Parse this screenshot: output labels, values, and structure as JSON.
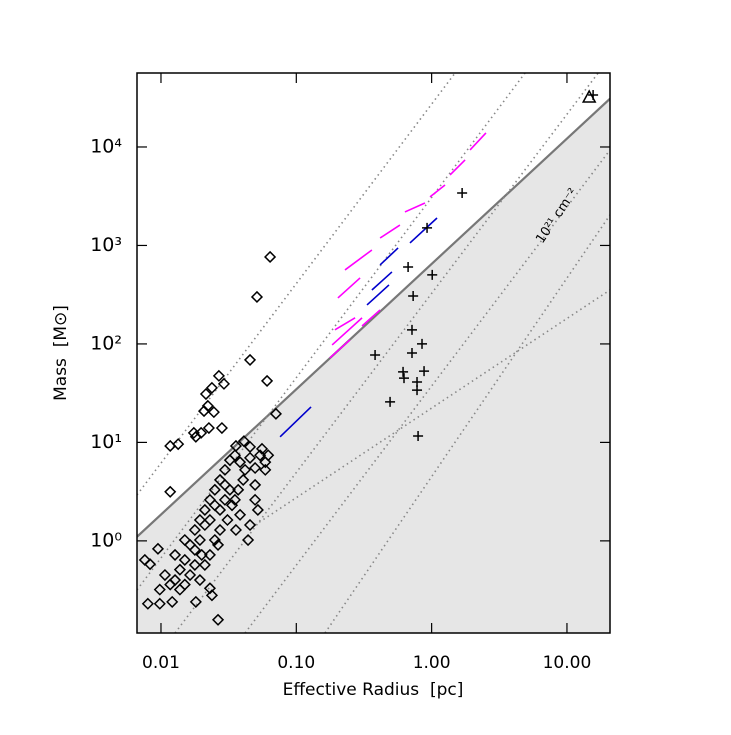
{
  "chart_data": {
    "type": "scatter",
    "xlabel": "Effective Radius  [pc]",
    "ylabel": "Mass  [M⊙]",
    "xscale": "log",
    "yscale": "log",
    "xlim": [
      0.00665,
      20.8
    ],
    "ylim": [
      0.116,
      56400
    ],
    "xticks": [
      {
        "value": 0.01,
        "label": "0.01"
      },
      {
        "value": 0.1,
        "label": "0.10"
      },
      {
        "value": 1,
        "label": "1.00"
      },
      {
        "value": 10,
        "label": "10.00"
      }
    ],
    "yticks": [
      {
        "value": 1,
        "label": "10⁰"
      },
      {
        "value": 10,
        "label": "10¹"
      },
      {
        "value": 100,
        "label": "10²"
      },
      {
        "value": 1000,
        "label": "10³"
      },
      {
        "value": 10000,
        "label": "10⁴"
      }
    ],
    "annotation": "10²¹ cm⁻²",
    "reference_lines": [
      {
        "style": "solid",
        "color": "#777777",
        "fill_below": "#e6e6e6",
        "x": [
          0.00665,
          20.8
        ],
        "values": [
          1.1,
          30900
        ]
      },
      {
        "style": "dotted",
        "color": "#888888",
        "x": [
          0.00665,
          1.49
        ],
        "values": [
          2.93,
          56400
        ]
      },
      {
        "style": "dotted",
        "color": "#888888",
        "x": [
          0.00665,
          4.9
        ],
        "values": [
          0.318,
          56400
        ]
      },
      {
        "style": "dotted",
        "color": "#888888",
        "x": [
          0.0127,
          17.0
        ],
        "values": [
          0.116,
          56400
        ]
      },
      {
        "style": "dotted",
        "color": "#888888",
        "x": [
          0.0418,
          20.8
        ],
        "values": [
          0.116,
          9330
        ]
      },
      {
        "style": "dotted",
        "color": "#888888",
        "x": [
          0.163,
          20.8
        ],
        "values": [
          0.116,
          2040
        ]
      },
      {
        "style": "dotted",
        "color": "#888888",
        "x": [
          0.0496,
          20.8
        ],
        "values": [
          1.45,
          353
        ]
      }
    ],
    "segments": [
      {
        "color": "#0000cc",
        "x": [
          0.0759,
          0.1285
        ],
        "values": [
          11.4,
          22.9
        ]
      },
      {
        "color": "#0000cc",
        "x": [
          0.333,
          0.484
        ],
        "values": [
          249,
          397
        ]
      },
      {
        "color": "#0000cc",
        "x": [
          0.362,
          0.509
        ],
        "values": [
          353,
          538
        ]
      },
      {
        "color": "#0000cc",
        "x": [
          0.416,
          0.565
        ],
        "values": [
          634,
          943
        ]
      },
      {
        "color": "#0000cc",
        "x": [
          0.692,
          1.096
        ],
        "values": [
          1060,
          1900
        ]
      },
      {
        "color": "#ff00ff",
        "x": [
          0.177,
          0.249
        ],
        "values": [
          72.1,
          110
        ]
      },
      {
        "color": "#ff00ff",
        "x": [
          0.184,
          0.306
        ],
        "values": [
          97.7,
          184
        ]
      },
      {
        "color": "#ff00ff",
        "x": [
          0.193,
          0.272
        ],
        "values": [
          139,
          184
        ]
      },
      {
        "color": "#ff00ff",
        "x": [
          0.306,
          0.416
        ],
        "values": [
          152,
          221
        ]
      },
      {
        "color": "#ff00ff",
        "x": [
          0.203,
          0.296
        ],
        "values": [
          293,
          468
        ]
      },
      {
        "color": "#ff00ff",
        "x": [
          0.229,
          0.362
        ],
        "values": [
          564,
          900
        ]
      },
      {
        "color": "#ff00ff",
        "x": [
          0.416,
          0.583
        ],
        "values": [
          1190,
          1610
        ]
      },
      {
        "color": "#ff00ff",
        "x": [
          0.635,
          0.893
        ],
        "values": [
          2190,
          2700
        ]
      },
      {
        "color": "#ff00ff",
        "x": [
          0.973,
          1.256
        ],
        "values": [
          3110,
          4110
        ]
      },
      {
        "color": "#ff00ff",
        "x": [
          1.368,
          1.766
        ],
        "values": [
          5200,
          7380
        ]
      },
      {
        "color": "#ff00ff",
        "x": [
          1.923,
          2.52
        ],
        "values": [
          9330,
          13900
        ]
      }
    ],
    "series": [
      {
        "marker": "diamond",
        "color": "#000000",
        "x": [
          0.064,
          0.0512,
          0.0455,
          0.0608,
          0.0707,
          0.0268,
          0.0292,
          0.0238,
          0.0215,
          0.0222,
          0.0208,
          0.0246,
          0.0226,
          0.0175,
          0.0181,
          0.0117,
          0.0134,
          0.0198,
          0.0282,
          0.0358,
          0.041,
          0.0455,
          0.0558,
          0.0117,
          0.0095,
          0.0083,
          0.008,
          0.0098,
          0.0121,
          0.0181,
          0.0264,
          0.0238,
          0.023,
          0.0138,
          0.015,
          0.0164,
          0.0178,
          0.0194,
          0.0211,
          0.023,
          0.025,
          0.0273,
          0.0297,
          0.0323,
          0.0352,
          0.0384,
          0.0418,
          0.0455,
          0.0496,
          0.054,
          0.059,
          0.0496,
          0.052,
          0.0455,
          0.0384,
          0.0352,
          0.0323,
          0.0297,
          0.025,
          0.0211,
          0.0194,
          0.0178,
          0.015,
          0.0127,
          0.0107,
          0.0127,
          0.0164,
          0.0194,
          0.0211,
          0.023,
          0.025,
          0.0273,
          0.031,
          0.0335,
          0.0372,
          0.0405,
          0.0273,
          0.023,
          0.0297,
          0.0178,
          0.015,
          0.0098,
          0.0117,
          0.0076,
          0.0138,
          0.02,
          0.0264,
          0.0358,
          0.044,
          0.0496,
          0.059,
          0.062
        ],
        "values": [
          764,
          300,
          68.8,
          42.1,
          19.5,
          47.4,
          39.3,
          35.8,
          31.0,
          23.5,
          20.8,
          20.3,
          14.0,
          12.5,
          11.4,
          9.2,
          9.6,
          12.5,
          14.0,
          9.2,
          10.3,
          9.0,
          8.6,
          3.15,
          0.83,
          0.58,
          0.23,
          0.23,
          0.24,
          0.24,
          0.158,
          0.28,
          0.33,
          0.51,
          0.64,
          0.91,
          1.29,
          1.63,
          2.06,
          2.61,
          3.3,
          4.16,
          5.26,
          6.6,
          7.4,
          6.3,
          5.26,
          6.96,
          5.5,
          7.4,
          6.3,
          2.61,
          2.06,
          1.45,
          1.84,
          2.61,
          3.3,
          3.7,
          2.3,
          1.45,
          1.02,
          0.81,
          0.36,
          0.4,
          0.45,
          0.72,
          0.45,
          0.4,
          0.57,
          0.72,
          1.02,
          1.29,
          1.63,
          2.3,
          3.3,
          4.16,
          2.06,
          1.63,
          2.61,
          0.57,
          1.02,
          0.32,
          0.36,
          0.64,
          0.32,
          0.72,
          0.91,
          1.29,
          1.02,
          3.7,
          5.26,
          7.4
        ]
      },
      {
        "marker": "plus",
        "color": "#000000",
        "x": [
          15.6,
          1.68,
          0.925,
          1.01,
          0.67,
          0.73,
          0.382,
          0.716,
          0.849,
          0.716,
          0.615,
          0.625,
          0.879,
          0.78,
          0.78,
          0.493,
          0.794
        ],
        "values": [
          33700,
          3410,
          1510,
          502,
          605,
          307,
          77.3,
          139,
          100,
          81,
          52,
          45,
          53,
          41,
          34,
          25.8,
          11.6
        ]
      },
      {
        "marker": "triangle",
        "color": "#000000",
        "x": [
          14.6
        ],
        "values": [
          32200
        ]
      }
    ]
  }
}
